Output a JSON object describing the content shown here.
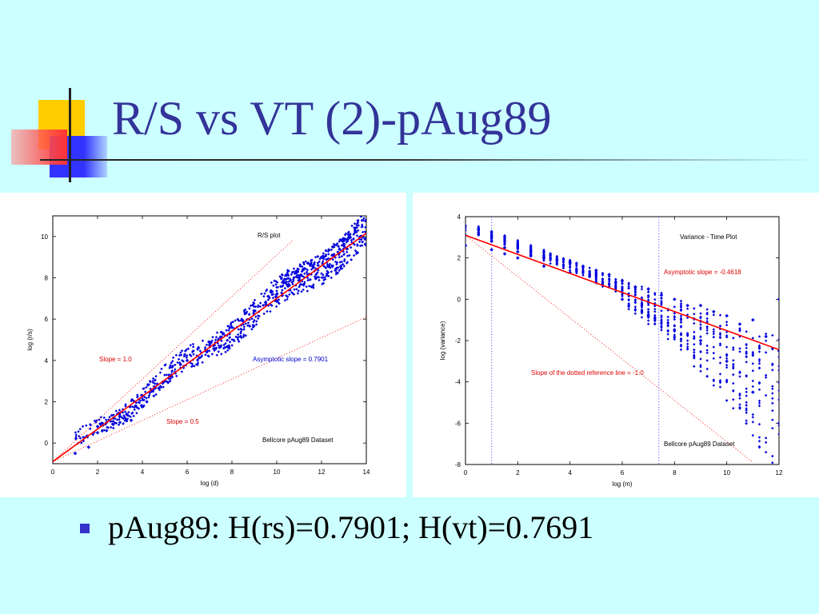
{
  "slide": {
    "title": "R/S vs VT (2)-pAug89",
    "bullet": "pAug89: H(rs)=0.7901; H(vt)=0.7691"
  },
  "colors": {
    "background": "#ccffff",
    "title": "#333399",
    "points": "#0000dd",
    "fit_line": "#ff0000",
    "annotation_red": "#dd0000",
    "annotation_blue": "#0000cc",
    "deco_yellow": "#ffcc00",
    "deco_blue": "#3333ff",
    "deco_red": "#ff3333"
  },
  "chart_data": [
    {
      "type": "scatter",
      "xlabel": "log (d)",
      "ylabel": "log (r/s)",
      "xlim": [
        0,
        14
      ],
      "ylim": [
        -1,
        11
      ],
      "xticks": [
        0,
        2,
        4,
        6,
        8,
        10,
        12,
        14
      ],
      "yticks": [
        0,
        2,
        4,
        6,
        8,
        10
      ],
      "grid": false,
      "annotations": {
        "plot_label": "R/S plot",
        "slope_high": "Slope = 1.0",
        "slope_low": "Slope = 0.5",
        "asymptotic": "Asymptotic slope = 0.7901",
        "dataset": "Bellcore pAug89 Dataset"
      },
      "fit_line": {
        "slope": 0.7901,
        "intercept": -0.9,
        "x": [
          0,
          14
        ]
      },
      "reference_lines": [
        {
          "slope": 1.0,
          "intercept": -0.9,
          "x": [
            0,
            10.7
          ]
        },
        {
          "slope": 0.5,
          "intercept": -0.9,
          "x": [
            0,
            14
          ]
        }
      ],
      "series": [
        {
          "values": [
            [
              1.0,
              -0.5
            ],
            [
              1.6,
              -0.2
            ],
            [
              2.0,
              0.5
            ],
            [
              2.0,
              0.8
            ],
            [
              2.4,
              0.6
            ],
            [
              2.4,
              1.0
            ],
            [
              2.7,
              0.9
            ],
            [
              2.7,
              1.2
            ],
            [
              3.0,
              1.3
            ],
            [
              3.0,
              1.0
            ],
            [
              3.3,
              1.4
            ],
            [
              3.5,
              1.1
            ],
            [
              3.7,
              1.8
            ],
            [
              4.0,
              2.3
            ],
            [
              4.2,
              2.0
            ],
            [
              4.5,
              2.6
            ],
            [
              5.0,
              3.0
            ],
            [
              5.3,
              3.3
            ],
            [
              5.7,
              3.8
            ],
            [
              6.0,
              4.0
            ],
            [
              6.5,
              4.6
            ],
            [
              7.0,
              4.9
            ],
            [
              7.5,
              5.1
            ],
            [
              8.0,
              5.6
            ],
            [
              8.5,
              5.9
            ],
            [
              9.0,
              6.4
            ],
            [
              9.5,
              6.8
            ],
            [
              10.0,
              7.2
            ],
            [
              10.5,
              7.6
            ],
            [
              11.0,
              8.0
            ],
            [
              11.5,
              8.6
            ],
            [
              12.0,
              9.0
            ],
            [
              12.5,
              9.5
            ],
            [
              13.0,
              9.8
            ],
            [
              13.5,
              10.3
            ],
            [
              14.0,
              10.8
            ]
          ]
        }
      ]
    },
    {
      "type": "scatter",
      "xlabel": "log (m)",
      "ylabel": "log (variance)",
      "xlim": [
        0,
        12
      ],
      "ylim": [
        -8,
        4
      ],
      "xticks": [
        0,
        2,
        4,
        6,
        8,
        10,
        12
      ],
      "yticks": [
        -8,
        -6,
        -4,
        -2,
        0,
        2,
        4
      ],
      "grid": false,
      "annotations": {
        "plot_label": "Variance - Time Plot",
        "asymptotic": "Asymptotic slope = -0.4618",
        "reference": "Slope of the dotted reference line = -1.0",
        "dataset": "Bellcore pAug89 Dataset"
      },
      "fit_line": {
        "slope": -0.4618,
        "intercept": 3.1,
        "x": [
          0,
          12
        ]
      },
      "reference_lines": [
        {
          "slope": -1.0,
          "intercept": 3.1,
          "x": [
            0,
            11
          ]
        }
      ],
      "vertical_lines": [
        1.0,
        7.4
      ],
      "series": [
        {
          "values": [
            [
              0.0,
              3.1
            ],
            [
              0.0,
              2.6
            ],
            [
              1.0,
              2.8
            ],
            [
              1.0,
              2.4
            ],
            [
              1.5,
              2.5
            ],
            [
              1.5,
              2.2
            ],
            [
              2.0,
              2.3
            ],
            [
              2.0,
              2.0
            ],
            [
              2.5,
              2.1
            ],
            [
              3.0,
              2.0
            ],
            [
              3.0,
              1.6
            ],
            [
              3.5,
              1.9
            ],
            [
              4.0,
              1.8
            ],
            [
              4.0,
              1.3
            ],
            [
              4.5,
              1.6
            ],
            [
              5.0,
              1.4
            ],
            [
              5.0,
              0.8
            ],
            [
              5.5,
              1.2
            ],
            [
              6.0,
              0.9
            ],
            [
              6.0,
              0.0
            ],
            [
              6.5,
              0.6
            ],
            [
              7.0,
              0.5
            ],
            [
              7.0,
              -0.8
            ],
            [
              7.5,
              0.2
            ],
            [
              8.0,
              0.0
            ],
            [
              8.0,
              -1.5
            ],
            [
              8.5,
              -0.3
            ],
            [
              9.0,
              -0.3
            ],
            [
              9.0,
              -2.0
            ],
            [
              9.5,
              -0.6
            ],
            [
              10.0,
              -0.8
            ],
            [
              10.0,
              -3.0
            ],
            [
              10.5,
              -1.2
            ],
            [
              11.0,
              -1.0
            ],
            [
              11.0,
              -4.5
            ],
            [
              11.5,
              -1.8
            ],
            [
              12.0,
              0.0
            ],
            [
              12.0,
              -2.5
            ],
            [
              12.0,
              -6.0
            ]
          ]
        }
      ]
    }
  ]
}
